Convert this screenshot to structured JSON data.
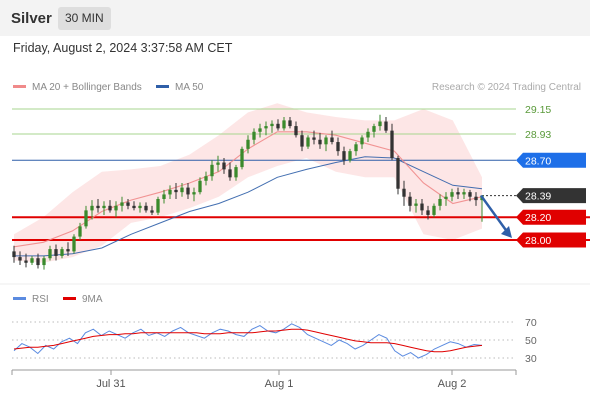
{
  "header": {
    "symbol": "Silver",
    "timeframe": "30 MIN"
  },
  "timestamp": "Friday, August 2, 2024 3:37:58 AM CET",
  "colors": {
    "up": "#3a8a2c",
    "down": "#333333",
    "ma20": "#f08a8a",
    "band_fill": "#fde2e2",
    "ma50": "#2f5fa8",
    "resistance": "#a7d58f",
    "pivot": "#2f5fa8",
    "support": "#e00000",
    "rsi": "#5b8be0",
    "rsi_ma": "#e00000",
    "arrow": "#2f5fa8",
    "last": "#333333"
  },
  "chart_data": [
    {
      "type": "candlestick",
      "legend": [
        {
          "label": "MA 20 + Bollinger Bands",
          "color": "#f08a8a"
        },
        {
          "label": "MA 50",
          "color": "#2f5fa8"
        }
      ],
      "credit": "Research © 2024 Trading Central",
      "x_ticks": [
        "Jul 31",
        "Aug 1",
        "Aug 2"
      ],
      "levels": [
        {
          "label": "29.15",
          "value": 29.15,
          "kind": "resistance"
        },
        {
          "label": "28.93",
          "value": 28.93,
          "kind": "resistance"
        },
        {
          "label": "28.70",
          "value": 28.7,
          "kind": "pivot"
        },
        {
          "label": "28.39",
          "value": 28.39,
          "kind": "last"
        },
        {
          "label": "28.20",
          "value": 28.2,
          "kind": "support"
        },
        {
          "label": "28.00",
          "value": 28.0,
          "kind": "support"
        }
      ],
      "projection": {
        "from": 28.39,
        "to": 28.0
      },
      "series": [
        {
          "name": "MA 50",
          "values": [
            27.86,
            27.86,
            27.88,
            27.93,
            28.05,
            28.15,
            28.25,
            28.32,
            28.42,
            28.55,
            28.62,
            28.68,
            28.73,
            28.72,
            28.6,
            28.48,
            28.45
          ]
        },
        {
          "name": "MA 20 + Bollinger Bands",
          "values": [
            27.94,
            27.98,
            28.08,
            28.25,
            28.35,
            28.42,
            28.5,
            28.6,
            28.8,
            28.95,
            28.95,
            28.92,
            28.85,
            28.78,
            28.5,
            28.32,
            28.38
          ]
        }
      ],
      "bands_upper": [
        28.05,
        28.2,
        28.42,
        28.6,
        28.62,
        28.65,
        28.75,
        28.92,
        29.12,
        29.2,
        29.12,
        29.08,
        29.05,
        29.05,
        29.15,
        29.05,
        28.55
      ],
      "bands_lower": [
        27.82,
        27.8,
        27.85,
        27.95,
        28.15,
        28.2,
        28.28,
        28.38,
        28.55,
        28.65,
        28.72,
        28.6,
        28.55,
        28.55,
        28.05,
        28.0,
        28.1
      ],
      "ohlc": [
        [
          27.9,
          27.95,
          27.8,
          27.85
        ],
        [
          27.85,
          27.9,
          27.78,
          27.82
        ],
        [
          27.82,
          27.88,
          27.76,
          27.8
        ],
        [
          27.8,
          27.86,
          27.78,
          27.84
        ],
        [
          27.84,
          27.88,
          27.75,
          27.78
        ],
        [
          27.78,
          27.86,
          27.74,
          27.84
        ],
        [
          27.84,
          27.95,
          27.82,
          27.92
        ],
        [
          27.92,
          27.96,
          27.82,
          27.86
        ],
        [
          27.86,
          27.94,
          27.84,
          27.92
        ],
        [
          27.92,
          27.98,
          27.86,
          27.9
        ],
        [
          27.9,
          28.05,
          27.88,
          28.03
        ],
        [
          28.03,
          28.15,
          28.0,
          28.12
        ],
        [
          28.12,
          28.3,
          28.1,
          28.26
        ],
        [
          28.26,
          28.35,
          28.18,
          28.3
        ],
        [
          28.3,
          28.36,
          28.24,
          28.28
        ],
        [
          28.28,
          28.34,
          28.22,
          28.3
        ],
        [
          28.3,
          28.35,
          28.24,
          28.26
        ],
        [
          28.26,
          28.34,
          28.2,
          28.3
        ],
        [
          28.3,
          28.38,
          28.25,
          28.33
        ],
        [
          28.33,
          28.36,
          28.27,
          28.3
        ],
        [
          28.3,
          28.34,
          28.26,
          28.28
        ],
        [
          28.28,
          28.33,
          28.24,
          28.3
        ],
        [
          28.3,
          28.33,
          28.24,
          28.26
        ],
        [
          28.26,
          28.3,
          28.22,
          28.24
        ],
        [
          28.24,
          28.38,
          28.22,
          28.36
        ],
        [
          28.36,
          28.44,
          28.32,
          28.4
        ],
        [
          28.4,
          28.48,
          28.36,
          28.44
        ],
        [
          28.44,
          28.5,
          28.36,
          28.42
        ],
        [
          28.42,
          28.5,
          28.38,
          28.46
        ],
        [
          28.46,
          28.5,
          28.36,
          28.4
        ],
        [
          28.4,
          28.46,
          28.34,
          28.42
        ],
        [
          28.42,
          28.55,
          28.4,
          28.52
        ],
        [
          28.52,
          28.6,
          28.48,
          28.56
        ],
        [
          28.56,
          28.7,
          28.52,
          28.66
        ],
        [
          28.66,
          28.74,
          28.6,
          28.68
        ],
        [
          28.68,
          28.72,
          28.58,
          28.62
        ],
        [
          28.62,
          28.68,
          28.52,
          28.55
        ],
        [
          28.55,
          28.66,
          28.52,
          28.64
        ],
        [
          28.64,
          28.82,
          28.62,
          28.8
        ],
        [
          28.8,
          28.92,
          28.76,
          28.88
        ],
        [
          28.88,
          28.98,
          28.84,
          28.95
        ],
        [
          28.95,
          29.02,
          28.9,
          28.98
        ],
        [
          28.98,
          29.04,
          28.92,
          29.0
        ],
        [
          29.0,
          29.05,
          28.94,
          29.02
        ],
        [
          29.02,
          29.06,
          28.96,
          28.98
        ],
        [
          28.98,
          29.08,
          28.96,
          29.05
        ],
        [
          29.05,
          29.08,
          28.98,
          29.0
        ],
        [
          29.0,
          29.04,
          28.9,
          28.92
        ],
        [
          28.92,
          28.96,
          28.78,
          28.82
        ],
        [
          28.82,
          28.92,
          28.8,
          28.9
        ],
        [
          28.9,
          28.96,
          28.84,
          28.88
        ],
        [
          28.88,
          28.94,
          28.8,
          28.84
        ],
        [
          28.84,
          28.92,
          28.78,
          28.9
        ],
        [
          28.9,
          28.96,
          28.84,
          28.86
        ],
        [
          28.86,
          28.9,
          28.74,
          28.78
        ],
        [
          28.78,
          28.82,
          28.66,
          28.7
        ],
        [
          28.7,
          28.8,
          28.68,
          28.78
        ],
        [
          28.78,
          28.86,
          28.74,
          28.84
        ],
        [
          28.84,
          28.92,
          28.8,
          28.9
        ],
        [
          28.9,
          28.98,
          28.86,
          28.95
        ],
        [
          28.95,
          29.02,
          28.9,
          29.0
        ],
        [
          29.0,
          29.1,
          28.96,
          29.04
        ],
        [
          29.04,
          29.08,
          28.94,
          28.96
        ],
        [
          28.96,
          29.02,
          28.7,
          28.72
        ],
        [
          28.72,
          28.74,
          28.4,
          28.45
        ],
        [
          28.45,
          28.52,
          28.3,
          28.38
        ],
        [
          28.38,
          28.42,
          28.25,
          28.3
        ],
        [
          28.3,
          28.36,
          28.24,
          28.32
        ],
        [
          28.32,
          28.36,
          28.22,
          28.26
        ],
        [
          28.26,
          28.3,
          28.18,
          28.22
        ],
        [
          28.22,
          28.32,
          28.2,
          28.3
        ],
        [
          28.3,
          28.4,
          28.26,
          28.36
        ],
        [
          28.36,
          28.42,
          28.3,
          28.38
        ],
        [
          28.38,
          28.45,
          28.34,
          28.42
        ],
        [
          28.42,
          28.46,
          28.36,
          28.4
        ],
        [
          28.4,
          28.45,
          28.36,
          28.42
        ],
        [
          28.42,
          28.44,
          28.34,
          28.38
        ],
        [
          28.38,
          28.42,
          28.3,
          28.35
        ],
        [
          28.35,
          28.38,
          28.16,
          28.39
        ]
      ]
    },
    {
      "type": "line",
      "legend": [
        {
          "label": "RSI",
          "color": "#5b8be0"
        },
        {
          "label": "9MA",
          "color": "#e00000"
        }
      ],
      "yticks": [
        "70",
        "50",
        "30"
      ],
      "levels": [
        70,
        50,
        30
      ],
      "ylim": [
        20,
        80
      ],
      "series": [
        {
          "name": "RSI",
          "values": [
            38,
            46,
            42,
            35,
            44,
            40,
            48,
            52,
            46,
            58,
            62,
            55,
            60,
            56,
            52,
            58,
            62,
            55,
            58,
            54,
            60,
            64,
            58,
            55,
            52,
            58,
            62,
            60,
            56,
            54,
            62,
            66,
            60,
            58,
            62,
            68,
            64,
            56,
            52,
            48,
            44,
            50,
            46,
            40,
            44,
            50,
            56,
            52,
            38,
            32,
            36,
            30,
            34,
            40,
            44,
            48,
            46,
            42,
            45,
            44
          ]
        },
        {
          "name": "9MA",
          "values": [
            40,
            41,
            42,
            42,
            43,
            44,
            46,
            48,
            50,
            52,
            54,
            55,
            56,
            56,
            57,
            57,
            58,
            58,
            58,
            58,
            58,
            58,
            58,
            58,
            57,
            57,
            57,
            58,
            58,
            58,
            58,
            59,
            60,
            60,
            61,
            62,
            62,
            61,
            59,
            57,
            55,
            53,
            51,
            49,
            48,
            47,
            47,
            47,
            46,
            44,
            42,
            40,
            38,
            37,
            37,
            38,
            40,
            42,
            43,
            44
          ]
        }
      ]
    }
  ]
}
